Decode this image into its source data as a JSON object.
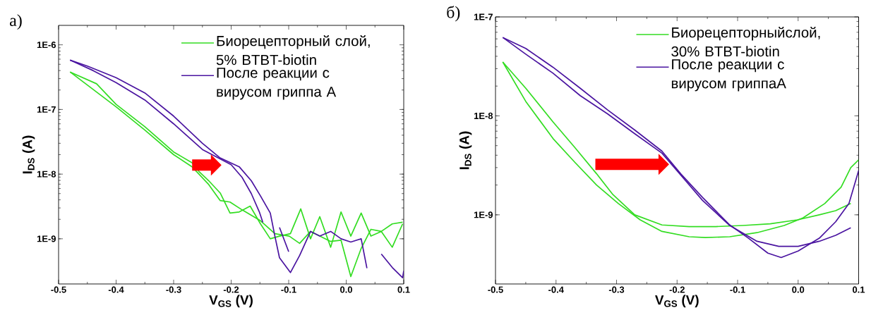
{
  "chart_data": [
    {
      "type": "line",
      "title": "a)",
      "xlabel": "V$_{GS}$ (V)",
      "ylabel": "I$_{DS}$ (A)",
      "log": "y",
      "xlim": [
        -0.5,
        0.1
      ],
      "ylim": [
        2e-10,
        2e-06
      ],
      "xticks": [
        -0.5,
        -0.4,
        -0.3,
        -0.2,
        -0.1,
        {
          "value": 0,
          "label": "0.0"
        },
        0.1
      ],
      "yticks": [
        {
          "value": 1e-09,
          "label": "1E-9"
        },
        {
          "value": 1e-08,
          "label": "1E-8"
        },
        {
          "value": 1e-07,
          "label": "1E-7"
        },
        {
          "value": 1e-06,
          "label": "1E-6"
        }
      ],
      "legend": "top right",
      "series": [
        {
          "name": "Биорецепторный слой, 5% BTBT-biotin",
          "color": "#33dd22",
          "x": [
            -0.48,
            -0.434,
            -0.4,
            -0.35,
            -0.3,
            -0.268,
            -0.256,
            -0.239,
            -0.219,
            -0.202,
            -0.186,
            -0.167,
            -0.149,
            -0.132,
            -0.116,
            -0.097,
            -0.079,
            -0.062,
            -0.046,
            -0.027,
            -0.009,
            0.008,
            0.026,
            0.043,
            0.061,
            0.08,
            0.098
          ],
          "values": [
            3.8e-07,
            2.5e-07,
            1.2e-07,
            5.4e-08,
            2.2e-08,
            1.5e-08,
            1.1e-08,
            7.9e-09,
            5.1e-09,
            2.5e-09,
            2.6e-09,
            3.2e-09,
            1.7e-09,
            1e-09,
            1.1e-09,
            1.2e-09,
            2.9e-09,
            1e-09,
            2.2e-09,
            7.4e-10,
            2.6e-09,
            1.1e-09,
            2.5e-09,
            1.1e-09,
            1.3e-09,
            7.4e-10,
            1.7e-09
          ]
        },
        {
          "color": "#33dd22",
          "x": [
            -0.48,
            -0.4,
            -0.35,
            -0.3,
            -0.268,
            -0.239,
            -0.219,
            -0.202,
            -0.181,
            -0.149,
            -0.124,
            -0.099,
            -0.081,
            -0.062,
            -0.046,
            -0.027,
            -0.009,
            0.008,
            0.026,
            0.043,
            0.061,
            0.08,
            0.098
          ],
          "values": [
            3.8e-07,
            1.1e-07,
            4.8e-08,
            2e-08,
            1.3e-08,
            6.9e-09,
            3.9e-09,
            3.7e-09,
            2.8e-09,
            1.9e-09,
            1.2e-09,
            1.1e-09,
            8.5e-10,
            1.3e-09,
            1.1e-09,
            9.1e-10,
            9.5e-10,
            2.6e-10,
            7.1e-10,
            1.4e-09,
            1.3e-09,
            1.7e-09,
            1.8e-09
          ]
        },
        {
          "name": "После реакции с вирусом гриппа А",
          "color": "#4a14a0",
          "x": [
            -0.48,
            -0.45,
            -0.4,
            -0.35,
            -0.3,
            -0.25,
            -0.22,
            -0.186,
            -0.165,
            -0.149,
            -0.132,
            -0.124,
            -0.116,
            -0.097,
            -0.081,
            -0.062,
            -0.046,
            -0.027,
            -0.009,
            0.008,
            0.026,
            0.036,
            null,
            0.061,
            0.08,
            0.098,
            0.1
          ],
          "values": [
            5.8e-07,
            4.7e-07,
            3.1e-07,
            1.8e-07,
            7.9e-08,
            3e-08,
            1.8e-08,
            1.3e-08,
            7.9e-09,
            4.6e-09,
            2.5e-09,
            1.1e-09,
            5.1e-10,
            3e-10,
            5.5e-10,
            1.3e-09,
            1.1e-09,
            1.3e-09,
            1e-09,
            8.9e-10,
            1e-09,
            3.5e-10,
            null,
            5.8e-10,
            3.6e-10,
            2.5e-10,
            3.2e-10
          ]
        },
        {
          "color": "#4a14a0",
          "x": [
            -0.48,
            -0.44,
            -0.4,
            -0.35,
            -0.3,
            -0.25,
            -0.2,
            -0.181,
            -0.165,
            -0.151,
            -0.145,
            null,
            -0.116,
            -0.1
          ],
          "values": [
            5.8e-07,
            4e-07,
            2.6e-07,
            1.4e-07,
            6e-08,
            2.4e-08,
            1.4e-08,
            8.9e-09,
            5e-09,
            2.6e-09,
            1.8e-09,
            null,
            1.5e-09,
            6.3e-10
          ]
        }
      ]
    },
    {
      "type": "line",
      "title": "б)",
      "xlabel": "V$_{GS}$ (V)",
      "ylabel": "I$_{DS}$ (A)",
      "log": "y",
      "xlim": [
        -0.5,
        0.1
      ],
      "ylim": [
        2e-10,
        1e-07
      ],
      "xticks": [
        -0.5,
        -0.4,
        -0.3,
        -0.2,
        -0.1,
        {
          "value": 0,
          "label": "0.0"
        },
        0.1
      ],
      "yticks": [
        {
          "value": 1e-09,
          "label": "1E-9"
        },
        {
          "value": 1e-08,
          "label": "1E-8"
        },
        {
          "value": 1e-07,
          "label": "1E-7"
        }
      ],
      "legend": "top right",
      "series": [
        {
          "name": "Биорецепторныйслой, 30% BTBT-biotin",
          "color": "#33dd22",
          "x": [
            -0.488,
            -0.45,
            -0.405,
            -0.369,
            -0.333,
            -0.297,
            -0.261,
            -0.225,
            -0.18,
            -0.153,
            -0.113,
            -0.068,
            -0.023,
            0.008,
            0.044,
            0.071,
            0.087,
            0.1
          ],
          "values": [
            3.5e-08,
            1.4e-08,
            5.9e-09,
            3.4e-09,
            2e-09,
            1.3e-09,
            8.9e-10,
            6.8e-10,
            6e-10,
            5.9e-10,
            6e-10,
            6.6e-10,
            7.8e-10,
            9.3e-10,
            1.3e-09,
            1.9e-09,
            3e-09,
            3.6e-09
          ]
        },
        {
          "color": "#33dd22",
          "x": [
            -0.488,
            -0.45,
            -0.405,
            -0.369,
            -0.333,
            -0.306,
            -0.27,
            -0.225,
            -0.18,
            -0.136,
            -0.091,
            -0.046,
            -0.001,
            0.035,
            0.062,
            0.087
          ],
          "values": [
            3.5e-08,
            1.9e-08,
            8.7e-09,
            4.8e-09,
            2.6e-09,
            1.6e-09,
            1e-09,
            7.9e-10,
            7.6e-10,
            7.6e-10,
            7.8e-10,
            8.1e-10,
            8.9e-10,
            1e-09,
            1.1e-09,
            1.3e-09
          ]
        },
        {
          "name": "После реакции с вирусом гриппаA",
          "color": "#4a14a0",
          "x": [
            -0.488,
            -0.45,
            -0.405,
            -0.36,
            -0.315,
            -0.27,
            -0.225,
            -0.194,
            -0.158,
            -0.113,
            -0.082,
            -0.05,
            -0.028,
            0.0,
            0.035,
            0.062,
            0.084,
            0.1
          ],
          "values": [
            6.2e-08,
            4.8e-08,
            3.1e-08,
            1.9e-08,
            1.15e-08,
            7.2e-09,
            4.4e-09,
            2.6e-09,
            1.5e-09,
            7.9e-10,
            5.8e-10,
            4.1e-10,
            3.7e-10,
            4.3e-10,
            5.8e-10,
            8.5e-10,
            1.3e-09,
            2.8e-09
          ]
        },
        {
          "color": "#4a14a0",
          "x": [
            -0.488,
            -0.45,
            -0.405,
            -0.36,
            -0.315,
            -0.27,
            -0.225,
            -0.158,
            -0.113,
            -0.068,
            -0.032,
            0.0,
            0.035,
            0.062,
            0.087
          ],
          "values": [
            6.2e-08,
            4.2e-08,
            2.7e-08,
            1.6e-08,
            1.05e-08,
            6.6e-09,
            4.2e-09,
            1.4e-09,
            7.8e-10,
            5.4e-10,
            4.8e-10,
            4.8e-10,
            5.4e-10,
            6.2e-10,
            7.4e-10
          ]
        }
      ]
    }
  ]
}
